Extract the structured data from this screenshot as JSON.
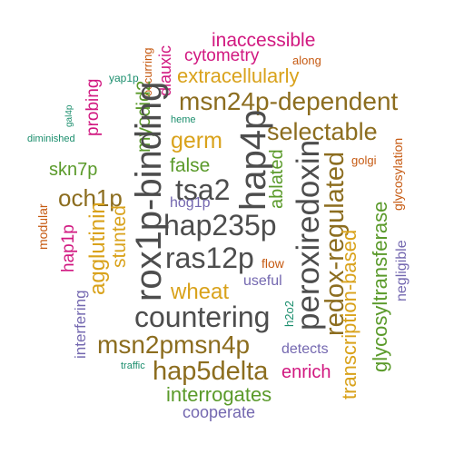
{
  "colors": {
    "dark_gray": "#4d4d4d",
    "brown": "#8c6d1f",
    "gold": "#d9a21b",
    "green": "#5a9a2a",
    "magenta": "#d11880",
    "orange": "#c65a12",
    "purple": "#7468b0",
    "teal": "#1b8e6d"
  },
  "words": [
    {
      "text": "inaccessible",
      "color": "magenta"
    },
    {
      "text": "occurring",
      "color": "orange"
    },
    {
      "text": "diauxic",
      "color": "magenta"
    },
    {
      "text": "cytometry",
      "color": "magenta"
    },
    {
      "text": "along",
      "color": "orange"
    },
    {
      "text": "yap1p",
      "color": "teal"
    },
    {
      "text": "extracellularly",
      "color": "gold"
    },
    {
      "text": "msn24p-dependent",
      "color": "brown"
    },
    {
      "text": "probing",
      "color": "magenta"
    },
    {
      "text": "gal4p",
      "color": "teal"
    },
    {
      "text": "myodid2",
      "color": "green"
    },
    {
      "text": "heme",
      "color": "teal"
    },
    {
      "text": "selectable",
      "color": "brown"
    },
    {
      "text": "diminished",
      "color": "teal"
    },
    {
      "text": "germ",
      "color": "gold"
    },
    {
      "text": "rox1p-binding",
      "color": "dark_gray"
    },
    {
      "text": "hap4p",
      "color": "dark_gray"
    },
    {
      "text": "golgi",
      "color": "orange"
    },
    {
      "text": "skn7p",
      "color": "green"
    },
    {
      "text": "false",
      "color": "green"
    },
    {
      "text": "peroxiredoxin",
      "color": "dark_gray"
    },
    {
      "text": "glycosylation",
      "color": "orange"
    },
    {
      "text": "tsa2",
      "color": "dark_gray"
    },
    {
      "text": "och1p",
      "color": "brown"
    },
    {
      "text": "ablated",
      "color": "green"
    },
    {
      "text": "hog1p",
      "color": "purple"
    },
    {
      "text": "modular",
      "color": "orange"
    },
    {
      "text": "agglutinin",
      "color": "gold"
    },
    {
      "text": "redox-regulated",
      "color": "brown"
    },
    {
      "text": "hap235p",
      "color": "dark_gray"
    },
    {
      "text": "transcription-based",
      "color": "gold"
    },
    {
      "text": "glycosyltransferase",
      "color": "green"
    },
    {
      "text": "hap1p",
      "color": "magenta"
    },
    {
      "text": "stunted",
      "color": "gold"
    },
    {
      "text": "negligible",
      "color": "purple"
    },
    {
      "text": "ras12p",
      "color": "dark_gray"
    },
    {
      "text": "flow",
      "color": "orange"
    },
    {
      "text": "useful",
      "color": "purple"
    },
    {
      "text": "wheat",
      "color": "gold"
    },
    {
      "text": "interfering",
      "color": "purple"
    },
    {
      "text": "h2o2",
      "color": "teal"
    },
    {
      "text": "countering",
      "color": "dark_gray"
    },
    {
      "text": "msn2pmsn4p",
      "color": "brown"
    },
    {
      "text": "detects",
      "color": "purple"
    },
    {
      "text": "traffic",
      "color": "teal"
    },
    {
      "text": "hap5delta",
      "color": "brown"
    },
    {
      "text": "enrich",
      "color": "magenta"
    },
    {
      "text": "interrogates",
      "color": "green"
    },
    {
      "text": "cooperate",
      "color": "purple"
    }
  ]
}
